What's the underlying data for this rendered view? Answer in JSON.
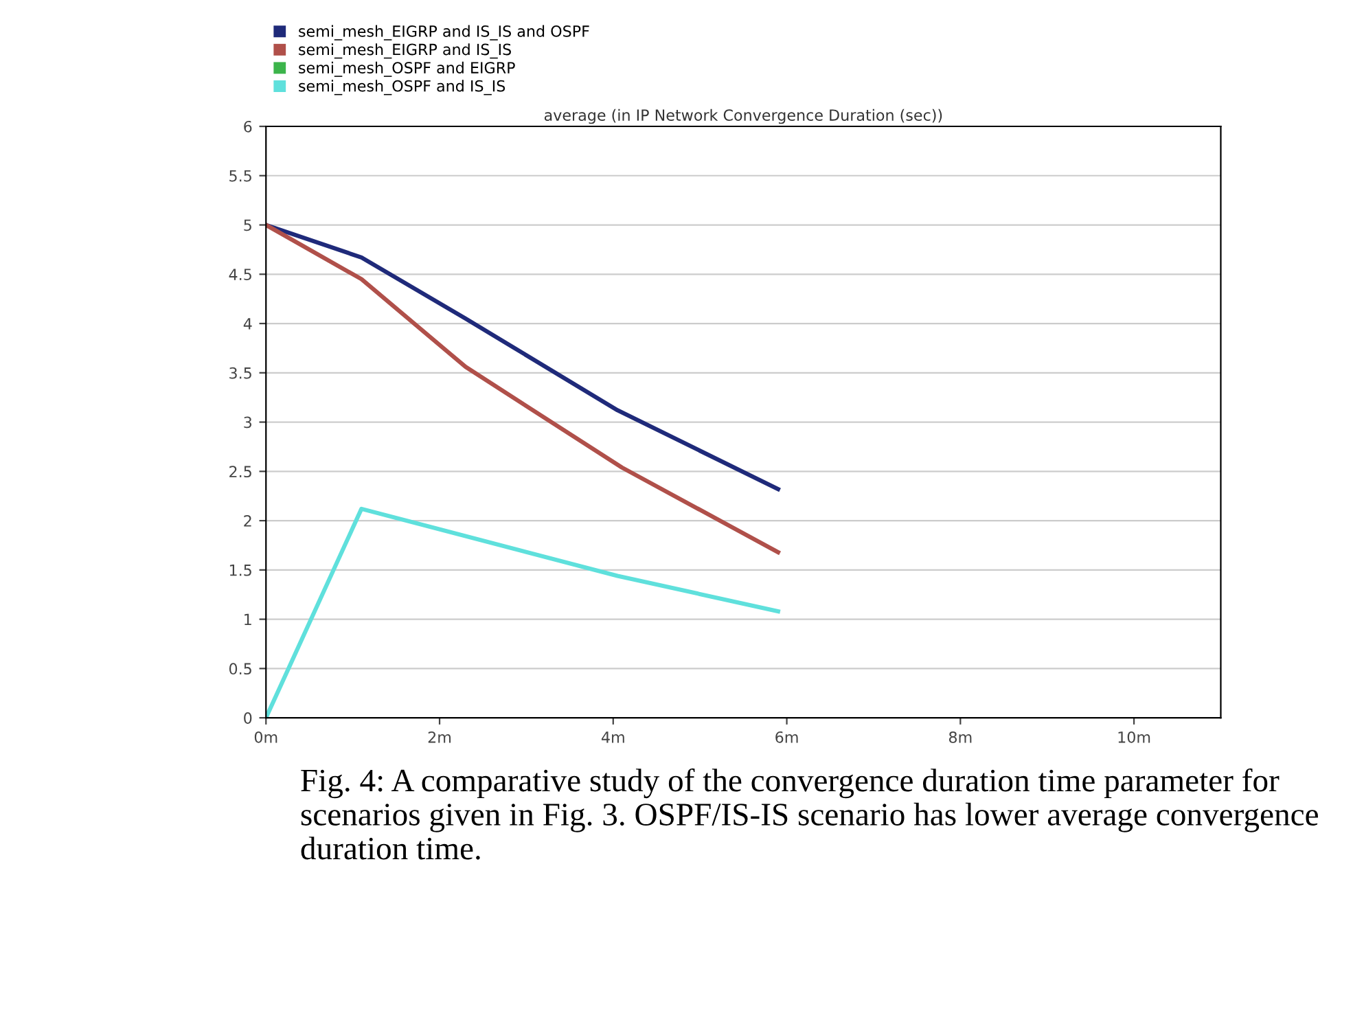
{
  "chart_data": {
    "type": "line",
    "title": "average (in IP Network Convergence Duration (sec))",
    "series": [
      {
        "name": "semi_mesh_EIGRP and IS_IS and OSPF",
        "color": "#1f2a7a",
        "x": [
          0,
          1.1,
          2.3,
          4.05,
          5.9
        ],
        "values": [
          5,
          4.67,
          4.05,
          3.12,
          2.32
        ]
      },
      {
        "name": "semi_mesh_EIGRP and IS_IS",
        "color": "#b0504a",
        "x": [
          0,
          1.1,
          2.3,
          4.1,
          5.9
        ],
        "values": [
          5,
          4.45,
          3.56,
          2.54,
          1.68
        ]
      },
      {
        "name": "semi_mesh_OSPF and EIGRP",
        "color": "#3cb44b",
        "values": [
          null,
          null,
          null,
          null,
          null
        ]
      },
      {
        "name": "semi_mesh_OSPF and IS_IS",
        "color": "#5fe0dc",
        "x": [
          0,
          1.1,
          4.05,
          5.9
        ],
        "values": [
          0,
          2.12,
          1.44,
          1.08
        ]
      }
    ],
    "xlim": [
      0,
      11
    ],
    "xticks": [
      {
        "value": 0,
        "label": "0m"
      },
      {
        "value": 2,
        "label": "2m"
      },
      {
        "value": 4,
        "label": "4m"
      },
      {
        "value": 6,
        "label": "6m"
      },
      {
        "value": 8,
        "label": "8m"
      },
      {
        "value": 10,
        "label": "10m"
      }
    ],
    "ylim": [
      0,
      6
    ],
    "yticks": [
      0,
      0.5,
      1,
      1.5,
      2,
      2.5,
      3,
      3.5,
      4,
      4.5,
      5,
      5.5,
      6
    ],
    "grid": "y",
    "legend": "top left",
    "marker": "none",
    "line_style": "solid",
    "annotations": [
      "Fig. 4: A comparative study of the convergence duration time parameter for scenarios given in Fig. 3. OSPF/IS-IS scenario has lower average convergence duration time."
    ]
  }
}
